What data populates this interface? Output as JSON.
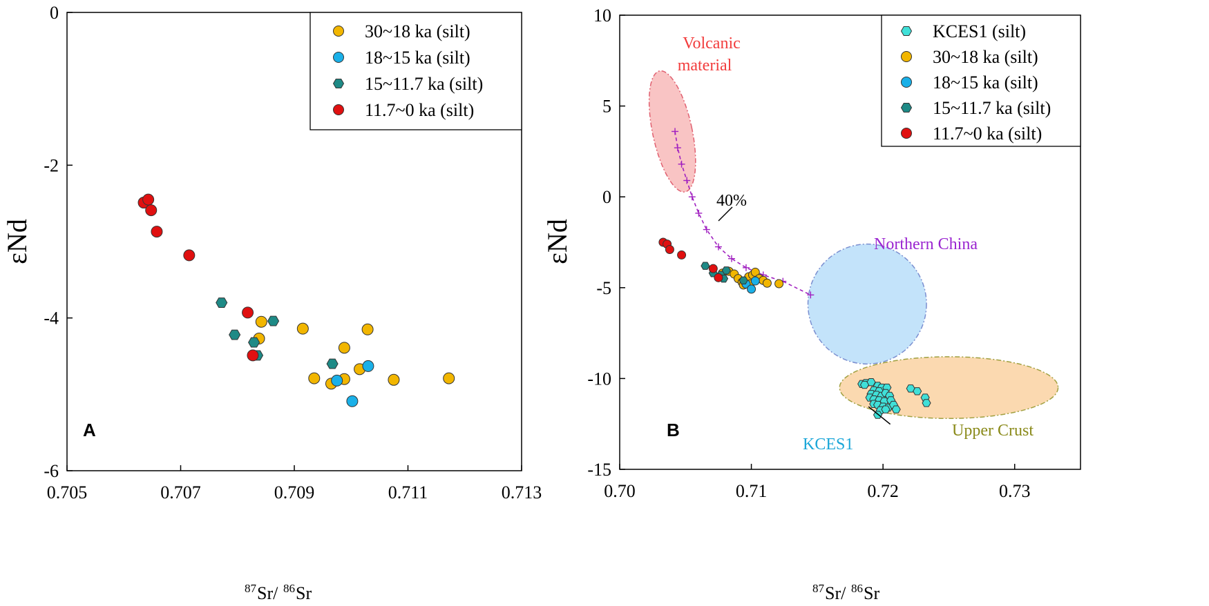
{
  "chart_data": [
    {
      "type": "scatter",
      "panel_label": "A",
      "xlabel_prefix": "87",
      "xlabel_mid": "Sr/",
      "xlabel_prefix2": "86",
      "xlabel_suffix": "Sr",
      "ylabel": "εNd",
      "xlim": [
        0.705,
        0.713
      ],
      "ylim": [
        -6,
        0
      ],
      "xticks": [
        "0.705",
        "0.707",
        "0.709",
        "0.711",
        "0.713"
      ],
      "yticks": [
        "0",
        "-2",
        "-4",
        "-6"
      ],
      "legend_position": "top-right",
      "series": [
        {
          "name": "30~18 ka (silt)",
          "color": "#f2b600",
          "points": [
            [
              0.70842,
              -4.05
            ],
            [
              0.70838,
              -4.27
            ],
            [
              0.70915,
              -4.14
            ],
            [
              0.70988,
              -4.39
            ],
            [
              0.71029,
              -4.15
            ],
            [
              0.70935,
              -4.79
            ],
            [
              0.70988,
              -4.8
            ],
            [
              0.70965,
              -4.86
            ],
            [
              0.71015,
              -4.67
            ],
            [
              0.71075,
              -4.81
            ],
            [
              0.71172,
              -4.79
            ]
          ]
        },
        {
          "name": "18~15 ka (silt)",
          "color": "#1ab0e8",
          "points": [
            [
              0.70975,
              -4.82
            ],
            [
              0.71002,
              -5.09
            ],
            [
              0.7103,
              -4.63
            ]
          ]
        },
        {
          "name": "15~11.7 ka (silt)",
          "color": "#1e8a86",
          "points": [
            [
              0.70772,
              -3.8
            ],
            [
              0.70795,
              -4.22
            ],
            [
              0.70829,
              -4.32
            ],
            [
              0.70835,
              -4.49
            ],
            [
              0.70863,
              -4.04
            ],
            [
              0.70967,
              -4.6
            ]
          ]
        },
        {
          "name": "11.7~0 ka (silt)",
          "color": "#e01010",
          "points": [
            [
              0.70635,
              -2.49
            ],
            [
              0.70643,
              -2.45
            ],
            [
              0.70648,
              -2.59
            ],
            [
              0.70658,
              -2.87
            ],
            [
              0.70715,
              -3.18
            ],
            [
              0.70818,
              -3.93
            ],
            [
              0.70827,
              -4.49
            ]
          ]
        }
      ]
    },
    {
      "type": "scatter",
      "panel_label": "B",
      "xlabel_prefix": "87",
      "xlabel_mid": "Sr/",
      "xlabel_prefix2": "86",
      "xlabel_suffix": "Sr",
      "ylabel": "εNd",
      "xlim": [
        0.7,
        0.735
      ],
      "ylim": [
        -15,
        10
      ],
      "xticks": [
        "0.70",
        "0.71",
        "0.72",
        "0.73"
      ],
      "yticks": [
        "10",
        "5",
        "0",
        "-5",
        "-10",
        "-15"
      ],
      "legend_position": "top-right",
      "series": [
        {
          "name": "KCES1 (silt)",
          "color": "#40e0d8",
          "points": [
            [
              0.7184,
              -10.3
            ],
            [
              0.7187,
              -10.25
            ],
            [
              0.7191,
              -10.2
            ],
            [
              0.7186,
              -10.35
            ],
            [
              0.7196,
              -10.4
            ],
            [
              0.7199,
              -10.5
            ],
            [
              0.7203,
              -10.5
            ],
            [
              0.7193,
              -10.65
            ],
            [
              0.7197,
              -10.7
            ],
            [
              0.7191,
              -10.85
            ],
            [
              0.7195,
              -10.9
            ],
            [
              0.7199,
              -10.95
            ],
            [
              0.7202,
              -10.8
            ],
            [
              0.7205,
              -10.95
            ],
            [
              0.719,
              -11.05
            ],
            [
              0.7193,
              -11.15
            ],
            [
              0.7197,
              -11.2
            ],
            [
              0.7201,
              -11.25
            ],
            [
              0.7206,
              -11.2
            ],
            [
              0.7193,
              -11.4
            ],
            [
              0.7196,
              -11.45
            ],
            [
              0.72,
              -11.55
            ],
            [
              0.7204,
              -11.6
            ],
            [
              0.7208,
              -11.45
            ],
            [
              0.7198,
              -11.75
            ],
            [
              0.7202,
              -11.7
            ],
            [
              0.721,
              -11.7
            ],
            [
              0.7196,
              -12.0
            ],
            [
              0.7221,
              -10.55
            ],
            [
              0.7226,
              -10.7
            ],
            [
              0.7232,
              -11.05
            ],
            [
              0.7233,
              -11.35
            ]
          ]
        },
        {
          "name": "30~18 ka (silt)",
          "color": "#f2b600",
          "points": [
            [
              0.7078,
              -4.2
            ],
            [
              0.7083,
              -4.1
            ],
            [
              0.7087,
              -4.25
            ],
            [
              0.709,
              -4.5
            ],
            [
              0.7093,
              -4.7
            ],
            [
              0.7096,
              -4.6
            ],
            [
              0.7098,
              -4.4
            ],
            [
              0.7101,
              -4.3
            ],
            [
              0.7103,
              -4.15
            ],
            [
              0.7106,
              -4.5
            ],
            [
              0.7109,
              -4.6
            ],
            [
              0.7112,
              -4.75
            ],
            [
              0.7099,
              -4.8
            ],
            [
              0.7094,
              -4.85
            ],
            [
              0.7121,
              -4.78
            ]
          ]
        },
        {
          "name": "18~15 ka (silt)",
          "color": "#1ab0e8",
          "points": [
            [
              0.7096,
              -4.8
            ],
            [
              0.71,
              -5.08
            ],
            [
              0.7103,
              -4.63
            ]
          ]
        },
        {
          "name": "15~11.7 ka (silt)",
          "color": "#1e8a86",
          "points": [
            [
              0.7065,
              -3.8
            ],
            [
              0.7071,
              -4.2
            ],
            [
              0.7077,
              -4.3
            ],
            [
              0.7079,
              -4.5
            ],
            [
              0.7081,
              -4.05
            ],
            [
              0.7094,
              -4.6
            ]
          ]
        },
        {
          "name": "11.7~0 ka (silt)",
          "color": "#e01010",
          "points": [
            [
              0.7033,
              -2.5
            ],
            [
              0.7036,
              -2.6
            ],
            [
              0.7038,
              -2.9
            ],
            [
              0.7047,
              -3.2
            ],
            [
              0.7071,
              -3.95
            ],
            [
              0.7075,
              -4.45
            ]
          ]
        }
      ],
      "mixing_line": {
        "color": "#a020c0",
        "points": [
          [
            0.7042,
            3.6
          ],
          [
            0.7044,
            2.7
          ],
          [
            0.7047,
            1.8
          ],
          [
            0.7051,
            0.9
          ],
          [
            0.7055,
            0.0
          ],
          [
            0.706,
            -0.9
          ],
          [
            0.7066,
            -1.8
          ],
          [
            0.7075,
            -2.75
          ],
          [
            0.7085,
            -3.4
          ],
          [
            0.7096,
            -3.9
          ],
          [
            0.7109,
            -4.3
          ],
          [
            0.7124,
            -4.65
          ],
          [
            0.7145,
            -5.4
          ]
        ],
        "label": "40%",
        "label_value": "40%",
        "label_at": [
          0.7062,
          -1.4
        ]
      },
      "regions": [
        {
          "name": "Volcanic material",
          "line1": "Volcanic",
          "line2": "material",
          "fill": "#f9c4c4",
          "stroke": "#e06070",
          "label_color": "#f23c3c",
          "center": [
            0.704,
            3.6
          ],
          "radius": [
            0.0015,
            3.4
          ],
          "rotation": -12
        },
        {
          "name": "Northern China",
          "fill": "#c3e3fa",
          "stroke": "#7b8fd0",
          "label_color": "#9a24d0",
          "center": [
            0.7188,
            -5.9
          ],
          "radius": [
            0.0045,
            3.3
          ],
          "rotation": 0
        },
        {
          "name": "Upper Crust",
          "fill": "#fbd9b0",
          "stroke": "#a0a040",
          "label_color": "#8a8a1a",
          "center": [
            0.725,
            -10.5
          ],
          "radius": [
            0.0083,
            1.7
          ],
          "rotation": 0
        }
      ],
      "annotation": {
        "text": "KCES1",
        "color": "#1aa6d8",
        "label_at": [
          0.7195,
          -13.2
        ],
        "pointer_to": [
          0.7189,
          -11.55
        ]
      }
    }
  ]
}
